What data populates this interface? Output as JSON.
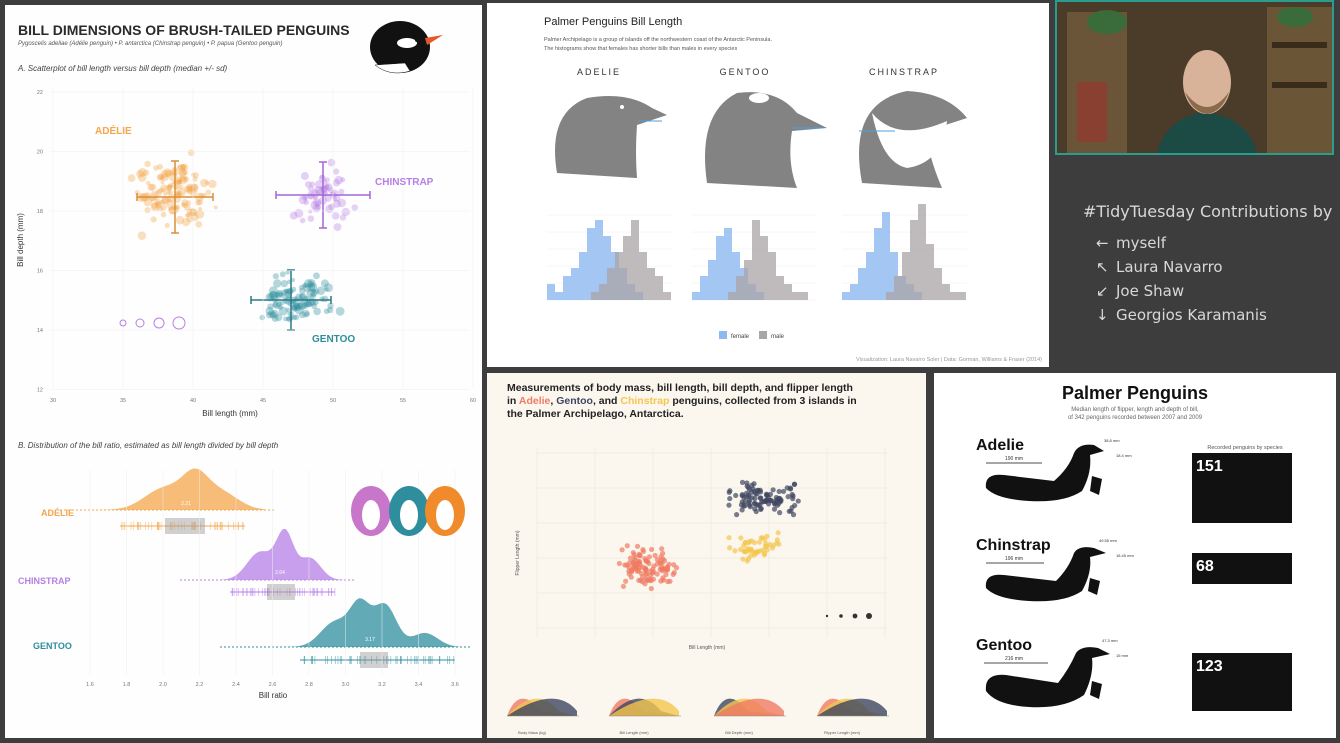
{
  "panel1": {
    "title": "BILL DIMENSIONS OF BRUSH-TAILED PENGUINS",
    "subtitle": "Pygoscelis adeliae (Adélie penguin) • P. antarctica (Chinstrap penguin) • P. papua (Gentoo penguin)",
    "sectionA": "A. Scatterplot of bill length versus bill depth (median +/- sd)",
    "sectionB": "B. Distribution of the bill ratio, estimated as bill length divided by bill depth",
    "xlabelA": "Bill length (mm)",
    "ylabelA": "Bill depth (mm)",
    "xticksA": [
      "30",
      "35",
      "40",
      "45",
      "50",
      "55",
      "60"
    ],
    "yticksA": [
      "22",
      "20",
      "18",
      "16",
      "14",
      "12"
    ],
    "species": {
      "adelie": "ADÉLIE",
      "chinstrap": "CHINSTRAP",
      "gentoo": "GENTOO"
    },
    "ratios": {
      "adelie": "2.21",
      "chinstrap": "2.64",
      "gentoo": "3.17"
    },
    "xlabelB": "Bill ratio",
    "xticksB": [
      "1.6",
      "1.8",
      "2.0",
      "2.2",
      "2.4",
      "2.6",
      "2.8",
      "3.0",
      "3.2",
      "3.4",
      "3.6"
    ],
    "colors": {
      "adelie": "#f3a64b",
      "chinstrap": "#b67fe6",
      "gentoo": "#2e8e9e"
    }
  },
  "panel2": {
    "title": "Palmer Penguins Bill Length",
    "desc1": "Palmer Archipelago is a group of islands off the northwestern coast of the Antarctic Peninsula.",
    "desc2": "The histograms show that females has shorter bills than males in every species",
    "species": [
      "ADELIE",
      "GENTOO",
      "CHINSTRAP"
    ],
    "legend": [
      "female",
      "male"
    ],
    "credit": "Visualization: Laura Navarro Soler | Data: Gorman, Williams & Fraser (2014)",
    "colors": {
      "female": "#8db8f0",
      "male": "#a9a4a6"
    }
  },
  "panel3": {
    "title_line1": "Measurements of body mass, bill length, bill depth, and flipper length",
    "title_in": "in ",
    "adelie": "Adelie",
    "comma": ", ",
    "gentoo": "Gentoo",
    "and": ", and ",
    "chinstrap": "Chinstrap",
    "title_tail": " penguins, collected from 3 islands in",
    "title_line3": "the Palmer Archipelago, Antarctica.",
    "ylabel": "Flipper Length (mm)",
    "xlabel": "Bill Length (mm)",
    "dens_labels": [
      "Body Mass (kg)",
      "Bill Length (mm)",
      "Bill Depth (mm)",
      "Flipper Length (mm)"
    ],
    "colors": {
      "adelie": "#f07b63",
      "gentoo": "#3e4660",
      "chinstrap": "#f4c64f"
    }
  },
  "panel4": {
    "title": "Palmer Penguins",
    "subtitle1": "Median length of flipper, length and depth of bill,",
    "subtitle2": "of 342 penguins recorded between 2007 and 2009",
    "recorded_label": "Recorded penguins by species",
    "species": [
      {
        "name": "Adelie",
        "count": "151",
        "flipper": "190 mm",
        "bill_len": "38.8 mm",
        "bill_depth": "18.4 mm"
      },
      {
        "name": "Chinstrap",
        "count": "68",
        "flipper": "196 mm",
        "bill_len": "49.55 mm",
        "bill_depth": "18.45 mm"
      },
      {
        "name": "Gentoo",
        "count": "123",
        "flipper": "216 mm",
        "bill_len": "47.3 mm",
        "bill_depth": "15 mm"
      }
    ]
  },
  "sidebar": {
    "title": "#TidyTuesday Contributions by",
    "items": [
      {
        "arrow": "←",
        "name": "myself"
      },
      {
        "arrow": "↖",
        "name": "Laura Navarro"
      },
      {
        "arrow": "↙",
        "name": "Joe Shaw"
      },
      {
        "arrow": "↓",
        "name": "Georgios Karamanis"
      }
    ]
  }
}
